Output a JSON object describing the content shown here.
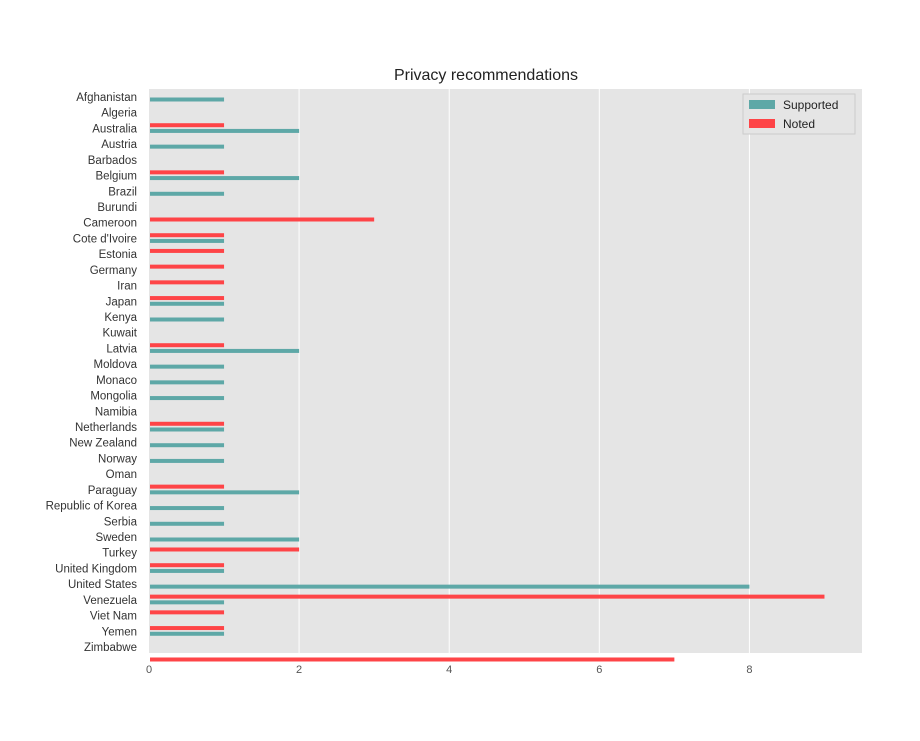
{
  "chart_data": {
    "type": "bar",
    "orientation": "horizontal",
    "title": "Privacy recommendations",
    "xlabel": "",
    "ylabel": "",
    "xlim": [
      0,
      9.5
    ],
    "xticks": [
      0,
      2,
      4,
      6,
      8
    ],
    "grid": true,
    "legend_position": "top-right",
    "categories": [
      "Afghanistan",
      "Algeria",
      "Australia",
      "Austria",
      "Barbados",
      "Belgium",
      "Brazil",
      "Burundi",
      "Cameroon",
      "Cote d'Ivoire",
      "Estonia",
      "Germany",
      "Iran",
      "Japan",
      "Kenya",
      "Kuwait",
      "Latvia",
      "Moldova",
      "Monaco",
      "Mongolia",
      "Namibia",
      "Netherlands",
      "New Zealand",
      "Norway",
      "Oman",
      "Paraguay",
      "Republic of Korea",
      "Serbia",
      "Sweden",
      "Turkey",
      "United Kingdom",
      "United States",
      "Venezuela",
      "Viet Nam",
      "Yemen",
      "Zimbabwe"
    ],
    "series": [
      {
        "name": "Supported",
        "color": "#5ea8a7",
        "values": [
          1,
          0,
          2,
          1,
          0,
          2,
          1,
          0,
          0,
          1,
          0,
          0,
          0,
          1,
          1,
          0,
          2,
          1,
          1,
          1,
          0,
          1,
          1,
          1,
          0,
          2,
          1,
          1,
          2,
          0,
          1,
          8,
          1,
          0,
          1,
          0
        ]
      },
      {
        "name": "Noted",
        "color": "#fe4447",
        "values": [
          0,
          1,
          0,
          0,
          1,
          0,
          0,
          3,
          1,
          1,
          1,
          1,
          1,
          0,
          0,
          1,
          0,
          0,
          0,
          0,
          1,
          0,
          0,
          0,
          1,
          0,
          0,
          0,
          2,
          1,
          0,
          9,
          1,
          1,
          0,
          7
        ]
      }
    ]
  }
}
